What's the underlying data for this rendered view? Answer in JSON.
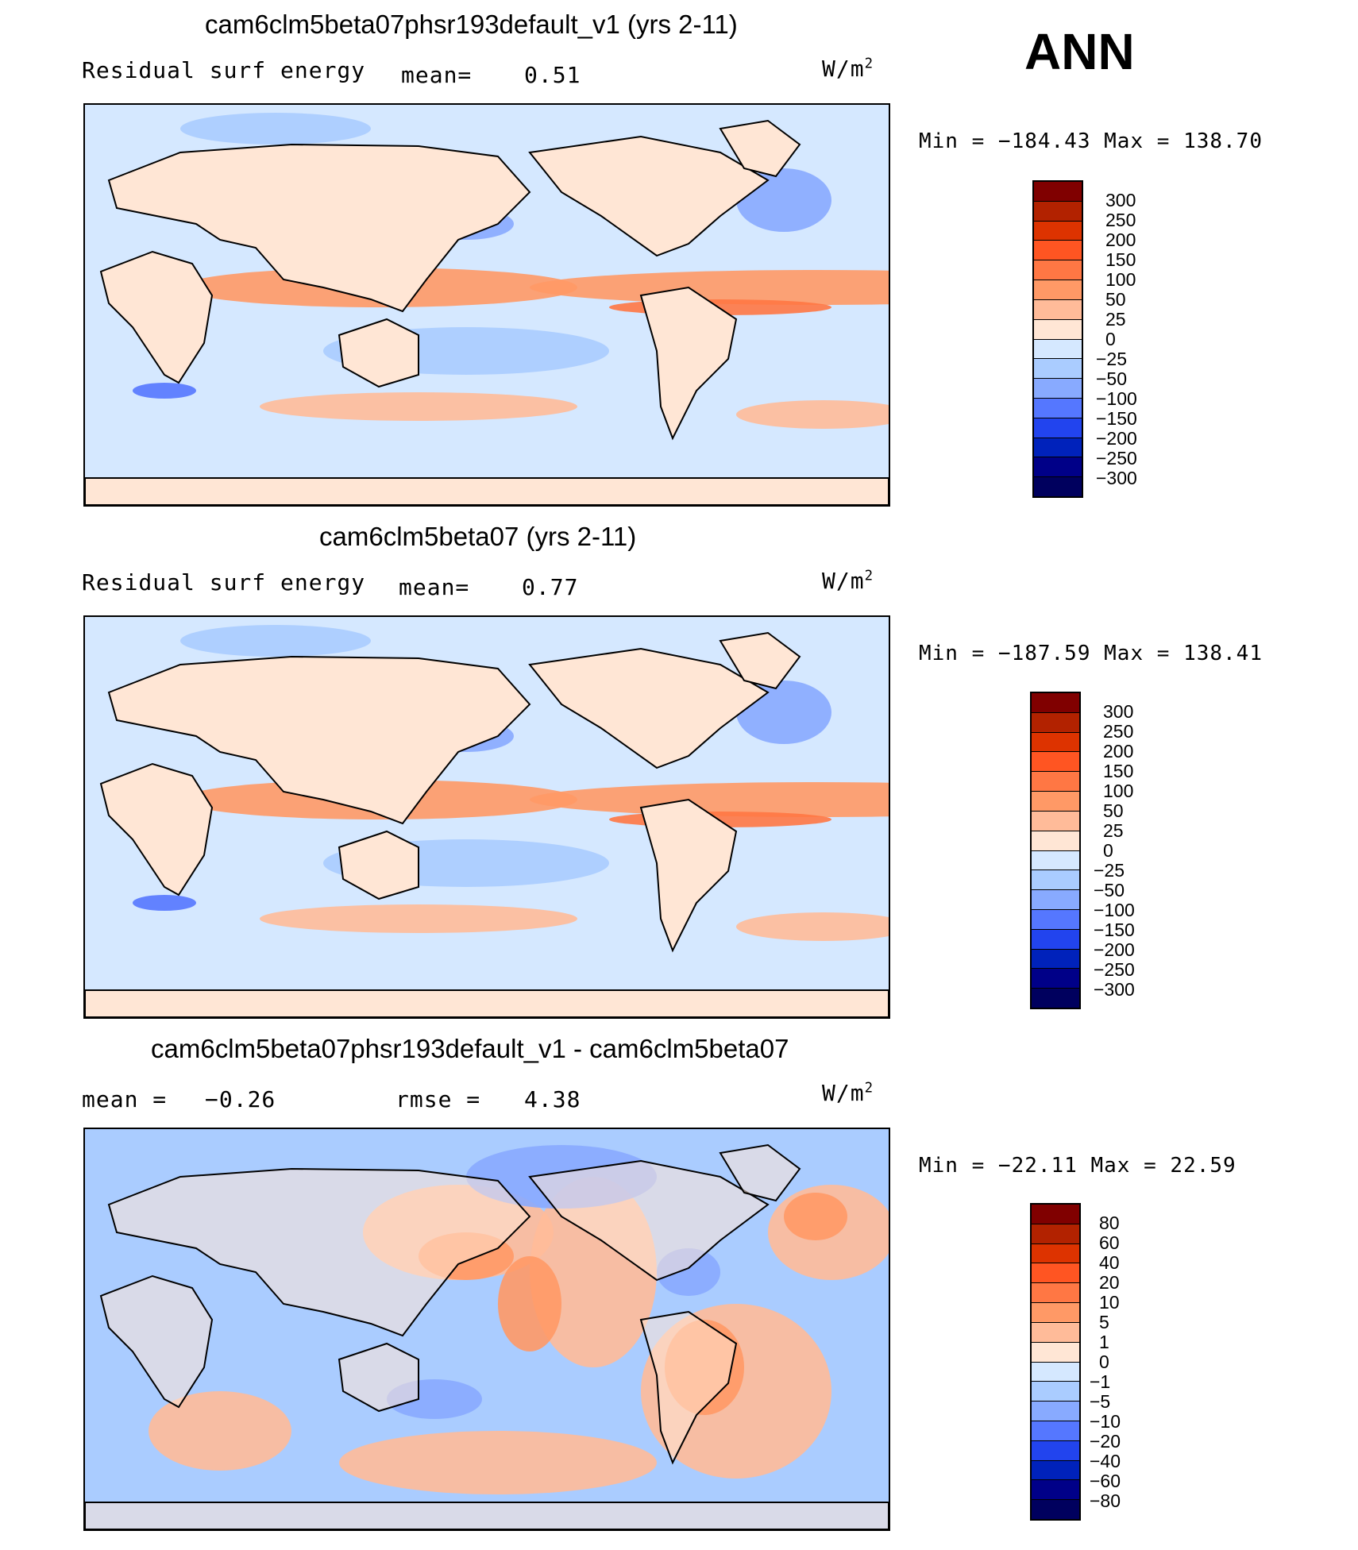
{
  "season": "ANN",
  "chart_data": [
    {
      "type": "heatmap",
      "title": "cam6clm5beta07phsr193default_v1 (yrs 2-11)",
      "variable": "Residual surf energy",
      "stat_label": "mean=",
      "stat_value": "0.51",
      "units": "W/m",
      "units_exp": "2",
      "min_max_label": "Min = −184.43 Max = 138.70",
      "min": -184.43,
      "max": 138.7,
      "mean": 0.51,
      "colorbar_levels": [
        "300",
        "250",
        "200",
        "150",
        "100",
        "50",
        "25",
        "0",
        "−25",
        "−50",
        "−100",
        "−150",
        "−200",
        "−250",
        "−300"
      ],
      "colorbar_colors": [
        "#800000",
        "#b22200",
        "#dd3300",
        "#ff5522",
        "#ff7744",
        "#ff9966",
        "#ffbb99",
        "#ffe6d5",
        "#d5e8ff",
        "#aaccff",
        "#88aaff",
        "#5577ff",
        "#2244ee",
        "#0022bb",
        "#000088",
        "#00005e"
      ]
    },
    {
      "type": "heatmap",
      "title": "cam6clm5beta07 (yrs 2-11)",
      "variable": "Residual surf energy",
      "stat_label": "mean=",
      "stat_value": "0.77",
      "units": "W/m",
      "units_exp": "2",
      "min_max_label": "Min = −187.59 Max = 138.41",
      "min": -187.59,
      "max": 138.41,
      "mean": 0.77,
      "colorbar_levels": [
        "300",
        "250",
        "200",
        "150",
        "100",
        "50",
        "25",
        "0",
        "−25",
        "−50",
        "−100",
        "−150",
        "−200",
        "−250",
        "−300"
      ],
      "colorbar_colors": [
        "#800000",
        "#b22200",
        "#dd3300",
        "#ff5522",
        "#ff7744",
        "#ff9966",
        "#ffbb99",
        "#ffe6d5",
        "#d5e8ff",
        "#aaccff",
        "#88aaff",
        "#5577ff",
        "#2244ee",
        "#0022bb",
        "#000088",
        "#00005e"
      ]
    },
    {
      "type": "heatmap",
      "title": "cam6clm5beta07phsr193default_v1 - cam6clm5beta07",
      "variable": "mean =",
      "variable_value": "−0.26",
      "stat_label": "rmse =",
      "stat_value": "4.38",
      "units": "W/m",
      "units_exp": "2",
      "min_max_label": "Min = −22.11 Max =  22.59",
      "min": -22.11,
      "max": 22.59,
      "mean": -0.26,
      "rmse": 4.38,
      "colorbar_levels": [
        "80",
        "60",
        "40",
        "20",
        "10",
        "5",
        "1",
        "0",
        "−1",
        "−5",
        "−10",
        "−20",
        "−40",
        "−60",
        "−80"
      ],
      "colorbar_colors": [
        "#800000",
        "#b22200",
        "#dd3300",
        "#ff5522",
        "#ff7744",
        "#ff9966",
        "#ffbb99",
        "#ffe6d5",
        "#d5e8ff",
        "#aaccff",
        "#88aaff",
        "#5577ff",
        "#2244ee",
        "#0022bb",
        "#000088",
        "#00005e"
      ]
    }
  ]
}
